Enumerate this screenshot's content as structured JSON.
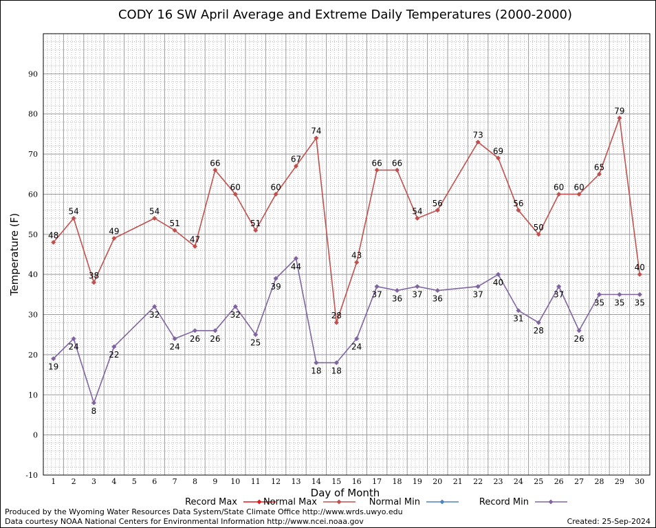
{
  "chart_data": {
    "type": "line",
    "title": "CODY 16 SW April Average and Extreme Daily Temperatures (2000-2000)",
    "xlabel": "Day of Month",
    "ylabel": "Temperature (F)",
    "xlim": [
      0.5,
      30.5
    ],
    "ylim": [
      -10,
      100
    ],
    "y_ticks": [
      -10,
      0,
      10,
      20,
      30,
      40,
      50,
      60,
      70,
      80,
      90
    ],
    "x_ticks": [
      "1",
      "2",
      "3",
      "4",
      "5",
      "6",
      "7",
      "8",
      "9",
      "10",
      "11",
      "12",
      "13",
      "14",
      "15",
      "16",
      "17",
      "18",
      "19",
      "20",
      "21",
      "22",
      "23",
      "24",
      "25",
      "26",
      "27",
      "28",
      "29",
      "30"
    ],
    "grid": true,
    "legend_position": "bottom",
    "legend": [
      {
        "name": "Record Max",
        "color": "#e41a1c"
      },
      {
        "name": "Normal Max",
        "color": "#c0504d"
      },
      {
        "name": "Normal Min",
        "color": "#4f81bd"
      },
      {
        "name": "Record Min",
        "color": "#8064a2"
      }
    ],
    "series": [
      {
        "name": "Normal Max",
        "color": "#c0504d",
        "points": [
          [
            1,
            48
          ],
          [
            2,
            54
          ],
          [
            3,
            38
          ],
          [
            4,
            49
          ],
          [
            6,
            54
          ],
          [
            7,
            51
          ],
          [
            8,
            47
          ],
          [
            9,
            66
          ],
          [
            10,
            60
          ],
          [
            11,
            51
          ],
          [
            12,
            60
          ],
          [
            13,
            67
          ],
          [
            14,
            74
          ],
          [
            15,
            28
          ],
          [
            16,
            43
          ],
          [
            17,
            66
          ],
          [
            18,
            66
          ],
          [
            19,
            54
          ],
          [
            20,
            56
          ],
          [
            22,
            73
          ],
          [
            23,
            69
          ],
          [
            24,
            56
          ],
          [
            25,
            50
          ],
          [
            26,
            60
          ],
          [
            27,
            60
          ],
          [
            28,
            65
          ],
          [
            29,
            79
          ],
          [
            30,
            40
          ]
        ]
      },
      {
        "name": "Record Min",
        "color": "#8064a2",
        "points": [
          [
            1,
            19
          ],
          [
            2,
            24
          ],
          [
            3,
            8
          ],
          [
            4,
            22
          ],
          [
            6,
            32
          ],
          [
            7,
            24
          ],
          [
            8,
            26
          ],
          [
            9,
            26
          ],
          [
            10,
            32
          ],
          [
            11,
            25
          ],
          [
            12,
            39
          ],
          [
            13,
            44
          ],
          [
            14,
            18
          ],
          [
            15,
            18
          ],
          [
            16,
            24
          ],
          [
            17,
            37
          ],
          [
            18,
            36
          ],
          [
            19,
            37
          ],
          [
            20,
            36
          ],
          [
            22,
            37
          ],
          [
            23,
            40
          ],
          [
            24,
            31
          ],
          [
            25,
            28
          ],
          [
            26,
            37
          ],
          [
            27,
            26
          ],
          [
            28,
            35
          ],
          [
            29,
            35
          ],
          [
            30,
            35
          ]
        ]
      }
    ]
  },
  "footer": {
    "line1": "Produced by the Wyoming Water Resources Data System/State Climate Office http://www.wrds.uwyo.edu",
    "line2": "Data courtesy NOAA National Centers for Environmental Information http://www.ncei.noaa.gov",
    "created": "Created:  25-Sep-2024"
  }
}
